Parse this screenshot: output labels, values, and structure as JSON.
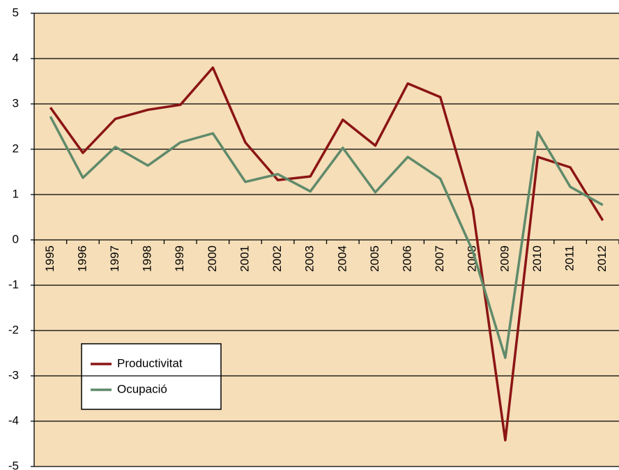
{
  "chart_data": {
    "type": "line",
    "categories": [
      "1995",
      "1996",
      "1997",
      "1998",
      "1999",
      "2000",
      "2001",
      "2002",
      "2003",
      "2004",
      "2005",
      "2006",
      "2007",
      "2008",
      "2009",
      "2010",
      "2011",
      "2012"
    ],
    "series": [
      {
        "name": "Productivitat",
        "color": "#8b1414",
        "values": [
          2.92,
          1.92,
          2.67,
          2.87,
          2.98,
          3.8,
          2.15,
          1.32,
          1.4,
          2.65,
          2.08,
          3.45,
          3.15,
          0.68,
          -4.42,
          1.83,
          1.6,
          0.43
        ]
      },
      {
        "name": "Ocupació",
        "color": "#5f8a6a",
        "values": [
          2.72,
          1.37,
          2.05,
          1.64,
          2.15,
          2.35,
          1.28,
          1.45,
          1.07,
          2.03,
          1.05,
          1.83,
          1.35,
          -0.25,
          -2.6,
          2.38,
          1.17,
          0.77
        ]
      }
    ],
    "ylim": [
      -5,
      5
    ],
    "yticks": [
      -5,
      -4,
      -3,
      -2,
      -1,
      0,
      1,
      2,
      3,
      4,
      5
    ],
    "grid": true
  }
}
